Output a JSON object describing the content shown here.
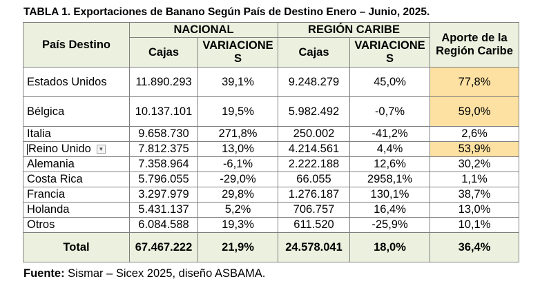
{
  "title": "TABLA 1. Exportaciones de Banano Según País de Destino Enero – Junio, 2025.",
  "headers": {
    "country": "País Destino",
    "nacional": "NACIONAL",
    "caribe": "REGIÓN CARIBE",
    "aporte": "Aporte de la Región Caribe",
    "cajas": "Cajas",
    "variaciones": "VARIACIONES"
  },
  "rows": [
    {
      "country": "Estados Unidos",
      "nac_cajas": "11.890.293",
      "nac_var": "39,1%",
      "car_cajas": "9.248.279",
      "car_var": "45,0%",
      "aporte": "77,8%"
    },
    {
      "country": "Bélgica",
      "nac_cajas": "10.137.101",
      "nac_var": "19,5%",
      "car_cajas": "5.982.492",
      "car_var": "-0,7%",
      "aporte": "59,0%"
    },
    {
      "country": "Italia",
      "nac_cajas": "9.658.730",
      "nac_var": "271,8%",
      "car_cajas": "250.002",
      "car_var": "-41,2%",
      "aporte": "2,6%"
    },
    {
      "country": "Reino Unido",
      "nac_cajas": "7.812.375",
      "nac_var": "13,0%",
      "car_cajas": "4.214.561",
      "car_var": "4,4%",
      "aporte": "53,9%"
    },
    {
      "country": "Alemania",
      "nac_cajas": "7.358.964",
      "nac_var": "-6,1%",
      "car_cajas": "2.222.188",
      "car_var": "12,6%",
      "aporte": "30,2%"
    },
    {
      "country": "Costa Rica",
      "nac_cajas": "5.796.055",
      "nac_var": "-29,0%",
      "car_cajas": "66.055",
      "car_var": "2958,1%",
      "aporte": "1,1%"
    },
    {
      "country": "Francia",
      "nac_cajas": "3.297.979",
      "nac_var": "29,8%",
      "car_cajas": "1.276.187",
      "car_var": "130,1%",
      "aporte": "38,7%"
    },
    {
      "country": "Holanda",
      "nac_cajas": "5.431.137",
      "nac_var": "5,2%",
      "car_cajas": "706.757",
      "car_var": "16,4%",
      "aporte": "13,0%"
    },
    {
      "country": "Otros",
      "nac_cajas": "6.084.588",
      "nac_var": "19,3%",
      "car_cajas": "611.520",
      "car_var": "-25,9%",
      "aporte": "10,1%"
    }
  ],
  "total": {
    "label": "Total",
    "nac_cajas": "67.467.222",
    "nac_var": "21,9%",
    "car_cajas": "24.578.041",
    "car_var": "18,0%",
    "aporte": "36,4%"
  },
  "source": {
    "label": "Fuente:",
    "text": " Sismar – Sicex 2025, diseño ASBAMA."
  },
  "icons": {
    "dropdown": "dropdown-arrow-icon"
  },
  "colors": {
    "header_bg": "#ebf1de",
    "highlight": "#fde1a2",
    "border": "#7f7f7f"
  }
}
